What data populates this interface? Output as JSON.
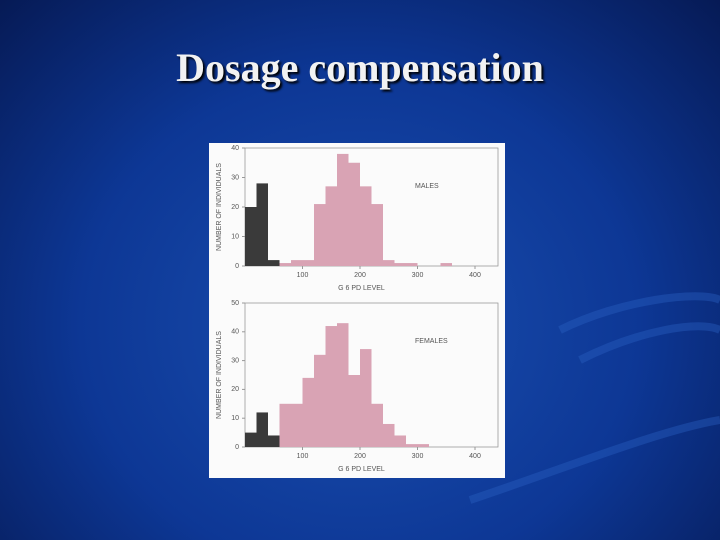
{
  "slide": {
    "title": "Dosage compensation"
  },
  "chart_data": [
    {
      "type": "histogram",
      "annotation": "MALES",
      "x_label": "G 6 PD LEVEL",
      "y_label": "NUMBER OF INDIVIDUALS",
      "bins": [
        0,
        20,
        40,
        60,
        80,
        100,
        120,
        140,
        160,
        180,
        200,
        220,
        240,
        260,
        280,
        300,
        320,
        340,
        360,
        380,
        400,
        420,
        440
      ],
      "values": [
        20,
        28,
        2,
        1,
        2,
        2,
        21,
        27,
        38,
        35,
        27,
        21,
        2,
        1,
        1,
        0,
        0,
        1,
        0,
        0,
        0,
        0
      ],
      "bar_colors": [
        "#3a3a3a",
        "#3a3a3a",
        "#3a3a3a",
        "#d9a3b4",
        "#d9a3b4",
        "#d9a3b4",
        "#d9a3b4",
        "#d9a3b4",
        "#d9a3b4",
        "#d9a3b4",
        "#d9a3b4",
        "#d9a3b4",
        "#d9a3b4",
        "#d9a3b4",
        "#d9a3b4",
        "#d9a3b4",
        "#d9a3b4",
        "#d9a3b4",
        "#d9a3b4",
        "#d9a3b4",
        "#d9a3b4",
        "#d9a3b4"
      ],
      "xlim": [
        0,
        440
      ],
      "xticks": [
        100,
        200,
        300,
        400
      ],
      "ylim": [
        0,
        40
      ],
      "yticks": [
        0,
        10,
        20,
        30,
        40
      ]
    },
    {
      "type": "histogram",
      "annotation": "FEMALES",
      "x_label": "G 6 PD LEVEL",
      "y_label": "NUMBER OF INDIVIDUALS",
      "bins": [
        0,
        20,
        40,
        60,
        80,
        100,
        120,
        140,
        160,
        180,
        200,
        220,
        240,
        260,
        280,
        300,
        320,
        340,
        360,
        380,
        400,
        420,
        440
      ],
      "values": [
        5,
        12,
        4,
        15,
        15,
        24,
        32,
        42,
        43,
        25,
        34,
        15,
        8,
        4,
        1,
        1,
        0,
        0,
        0,
        0,
        0,
        0
      ],
      "bar_colors": [
        "#3a3a3a",
        "#3a3a3a",
        "#3a3a3a",
        "#d9a3b4",
        "#d9a3b4",
        "#d9a3b4",
        "#d9a3b4",
        "#d9a3b4",
        "#d9a3b4",
        "#d9a3b4",
        "#d9a3b4",
        "#d9a3b4",
        "#d9a3b4",
        "#d9a3b4",
        "#d9a3b4",
        "#d9a3b4",
        "#d9a3b4",
        "#d9a3b4",
        "#d9a3b4",
        "#d9a3b4",
        "#d9a3b4",
        "#d9a3b4"
      ],
      "xlim": [
        0,
        440
      ],
      "xticks": [
        100,
        200,
        300,
        400
      ],
      "ylim": [
        0,
        50
      ],
      "yticks": [
        0,
        10,
        20,
        30,
        40,
        50
      ]
    }
  ]
}
